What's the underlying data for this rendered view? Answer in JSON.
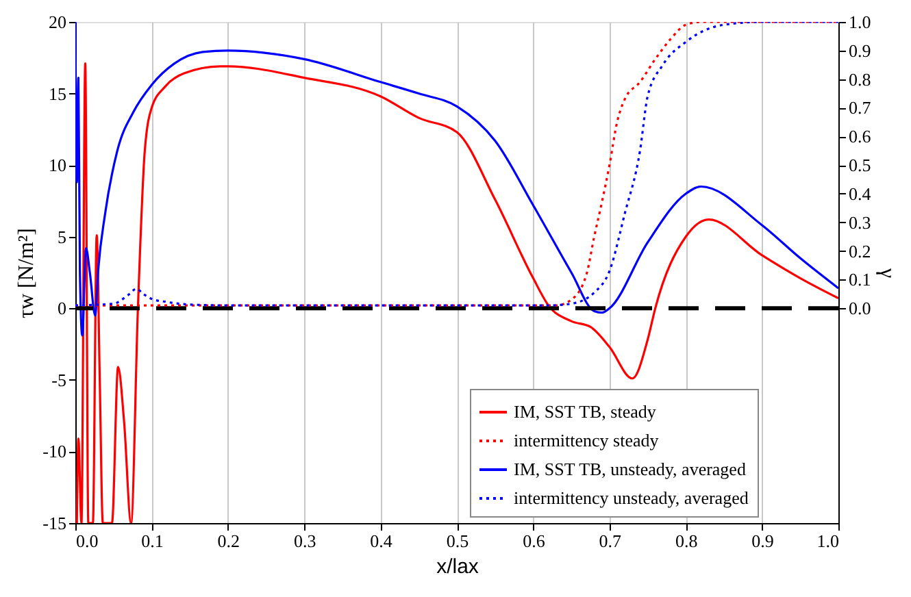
{
  "chart_data": {
    "type": "line",
    "xlabel": "x/lax",
    "ylabel": "τw [N/m²]",
    "y2label": "γ",
    "xlim": [
      0,
      1
    ],
    "xticks": [
      {
        "value": 0,
        "label": "0.0"
      },
      {
        "value": 0.1,
        "label": "0.1"
      },
      {
        "value": 0.2,
        "label": "0.2"
      },
      {
        "value": 0.3,
        "label": "0.3"
      },
      {
        "value": 0.4,
        "label": "0.4"
      },
      {
        "value": 0.5,
        "label": "0.5"
      },
      {
        "value": 0.6,
        "label": "0.6"
      },
      {
        "value": 0.7,
        "label": "0.7"
      },
      {
        "value": 0.8,
        "label": "0.8"
      },
      {
        "value": 0.9,
        "label": "0.9"
      },
      {
        "value": 1,
        "label": "1.0"
      }
    ],
    "ylim": [
      -15,
      20
    ],
    "yticks": [
      -15,
      -10,
      -5,
      0,
      5,
      10,
      15,
      20
    ],
    "y2lim": [
      -0.75,
      1.0
    ],
    "y2ticks": [
      {
        "value": 0,
        "label": "0.0"
      },
      {
        "value": 0.1,
        "label": "0.1"
      },
      {
        "value": 0.2,
        "label": "0.2"
      },
      {
        "value": 0.3,
        "label": "0.3"
      },
      {
        "value": 0.4,
        "label": "0.4"
      },
      {
        "value": 0.5,
        "label": "0.5"
      },
      {
        "value": 0.6,
        "label": "0.6"
      },
      {
        "value": 0.7,
        "label": "0.7"
      },
      {
        "value": 0.8,
        "label": "0.8"
      },
      {
        "value": 0.9,
        "label": "0.9"
      },
      {
        "value": 1,
        "label": "1.0"
      }
    ],
    "grid": "x",
    "legend": "bottom right",
    "ref_lines": [
      {
        "axis": "y",
        "value": 0,
        "color": "#000000",
        "line_style": "dashed"
      }
    ],
    "series": [
      {
        "name": "IM, SST TB, steady",
        "color": "#ff0000",
        "line_style": "solid",
        "x": [
          0.002,
          0.004,
          0.008,
          0.013,
          0.017,
          0.023,
          0.028,
          0.032,
          0.036,
          0.048,
          0.056,
          0.064,
          0.073,
          0.082,
          0.091,
          0.1,
          0.118,
          0.142,
          0.19,
          0.2,
          0.3,
          0.4,
          0.45,
          0.5,
          0.55,
          0.6,
          0.62,
          0.65,
          0.675,
          0.7,
          0.73,
          0.75,
          0.76,
          0.8,
          0.83,
          0.9,
          0.95,
          1.0
        ],
        "values": [
          -15,
          -9.1,
          -15,
          17.1,
          -15,
          -15,
          5.1,
          -5,
          -15,
          -15,
          -4.1,
          -8,
          -15,
          0,
          11,
          14,
          15.5,
          16.4,
          16.9,
          16.9,
          16.1,
          14.8,
          13.3,
          12.3,
          7.6,
          2.1,
          0.2,
          -0.9,
          -1.3,
          -2.7,
          -4.9,
          -2.2,
          0,
          5.0,
          6.2,
          3.7,
          2.1,
          0.7
        ]
      },
      {
        "name": "intermittency steady",
        "color": "#ff0000",
        "line_style": "dotted",
        "axis": "y2",
        "x": [
          0.0,
          0.2,
          0.4,
          0.63,
          0.65,
          0.67,
          0.68,
          0.69,
          0.7,
          0.71,
          0.72,
          0.74,
          0.76,
          0.78,
          0.8,
          0.82,
          1.0
        ],
        "values": [
          0.01,
          0.01,
          0.01,
          0.01,
          0.03,
          0.12,
          0.25,
          0.37,
          0.5,
          0.65,
          0.73,
          0.79,
          0.87,
          0.94,
          0.99,
          1.0,
          1.0
        ]
      },
      {
        "name": "IM, SST TB, unsteady, averaged",
        "color": "#0000ff",
        "line_style": "solid",
        "x": [
          0.0,
          0.002,
          0.004,
          0.006,
          0.009,
          0.014,
          0.019,
          0.026,
          0.03,
          0.039,
          0.055,
          0.076,
          0.1,
          0.13,
          0.167,
          0.2,
          0.3,
          0.4,
          0.45,
          0.5,
          0.55,
          0.6,
          0.65,
          0.68,
          0.69,
          0.7,
          0.75,
          0.8,
          0.82,
          0.9,
          0.95,
          1.0
        ],
        "values": [
          20,
          8.8,
          16.1,
          2.5,
          -1.9,
          4.2,
          2.5,
          -0.5,
          2.7,
          6.6,
          11,
          13.7,
          15.6,
          17.1,
          17.9,
          18.0,
          17.4,
          15.8,
          15.0,
          14.1,
          11.7,
          7.2,
          2.5,
          -0.2,
          -0.3,
          0,
          4.6,
          8.0,
          8.5,
          5.8,
          3.5,
          1.4
        ]
      },
      {
        "name": "intermittency unsteady, averaged",
        "color": "#0000ff",
        "line_style": "dotted",
        "axis": "y2",
        "x": [
          0.0,
          0.05,
          0.07,
          0.08,
          0.09,
          0.1,
          0.12,
          0.15,
          0.2,
          0.4,
          0.62,
          0.65,
          0.68,
          0.7,
          0.72,
          0.74,
          0.75,
          0.77,
          0.8,
          0.85,
          0.9,
          1.0
        ],
        "values": [
          0.01,
          0.016,
          0.048,
          0.068,
          0.048,
          0.033,
          0.022,
          0.013,
          0.01,
          0.01,
          0.01,
          0.016,
          0.055,
          0.13,
          0.33,
          0.55,
          0.74,
          0.85,
          0.93,
          0.99,
          1.0,
          1.0
        ]
      }
    ]
  }
}
